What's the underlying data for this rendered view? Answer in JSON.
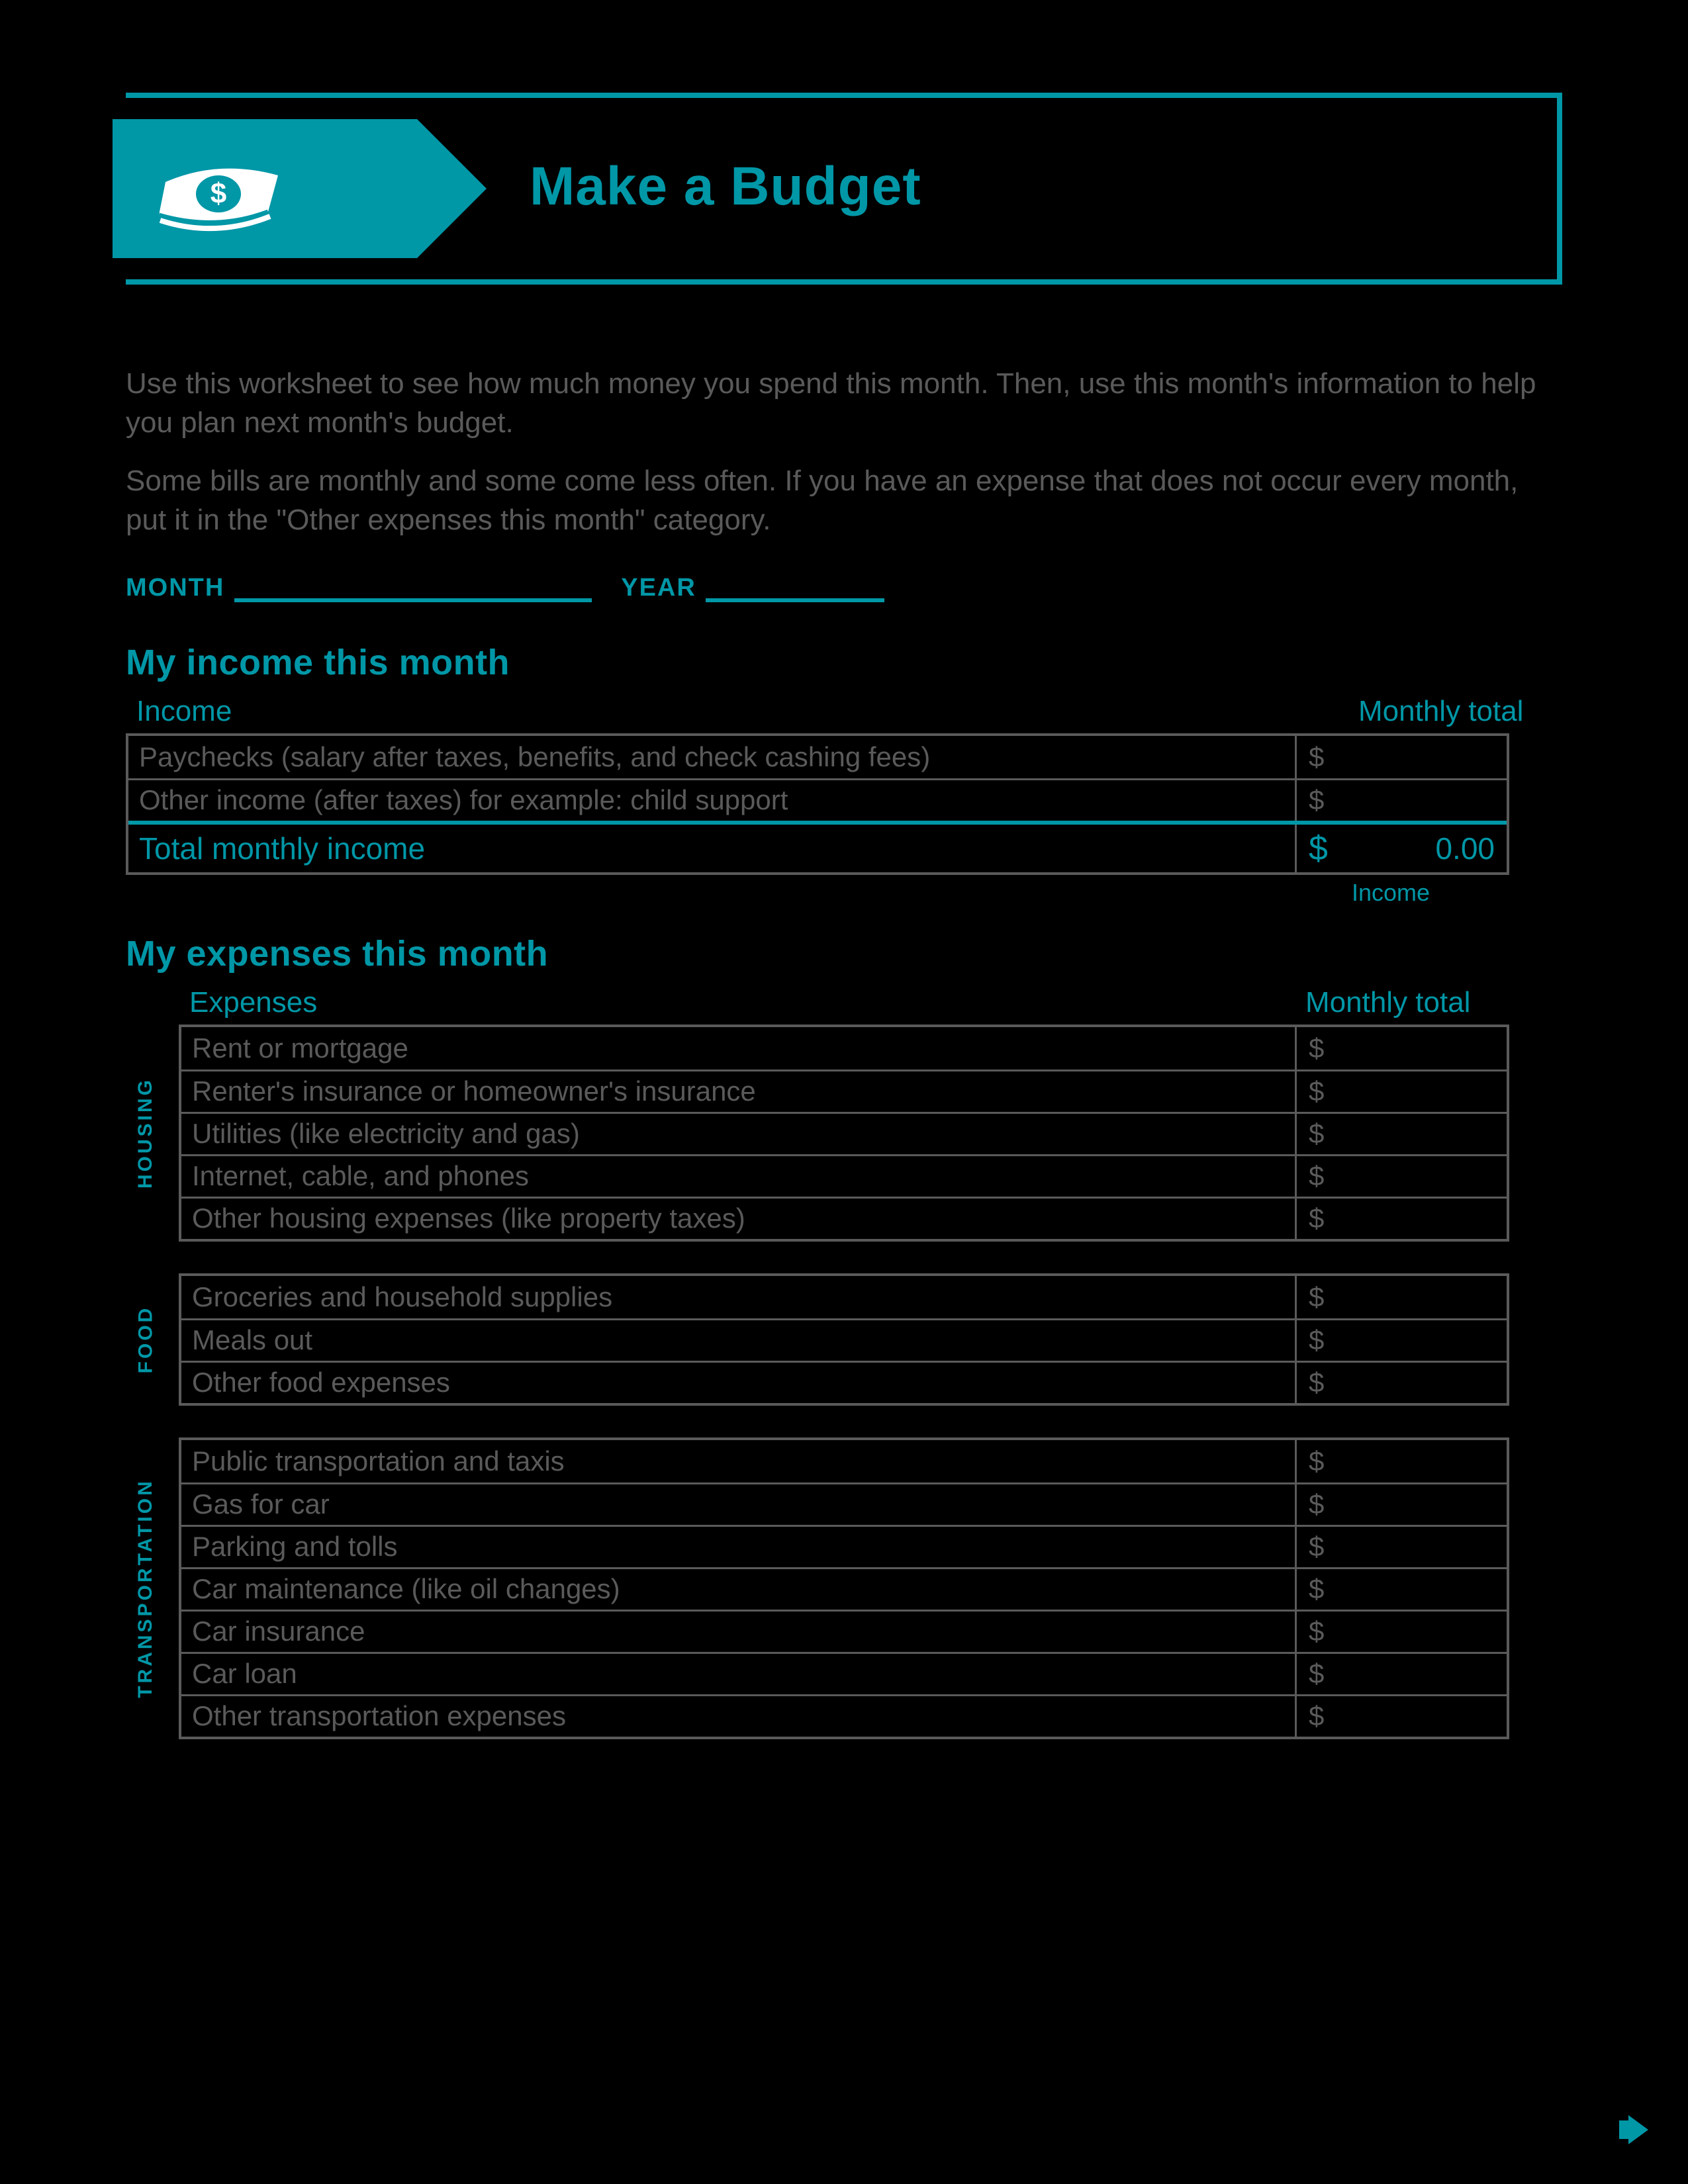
{
  "header": {
    "title": "Make a Budget"
  },
  "intro": {
    "p1": "Use this worksheet to see how much money you spend this month. Then, use this month's information to help you plan next month's budget.",
    "p2": "Some bills are monthly and some come less often. If you have an expense that does not occur every month, put it in the \"Other expenses this month\" category."
  },
  "date": {
    "month_label": "MONTH",
    "year_label": "YEAR",
    "month_value": "",
    "year_value": ""
  },
  "income": {
    "heading": "My income this month",
    "col_left": "Income",
    "col_right": "Monthly total",
    "rows": [
      {
        "desc": "Paychecks (salary after taxes, benefits, and check cashing fees)",
        "amount": ""
      },
      {
        "desc": "Other income (after taxes) for example: child support",
        "amount": ""
      }
    ],
    "total_label": "Total monthly income",
    "total_value": "0.00",
    "sublabel": "Income"
  },
  "expenses": {
    "heading": "My expenses this month",
    "col_left": "Expenses",
    "col_right": "Monthly total",
    "groups": [
      {
        "label": "HOUSING",
        "rows": [
          {
            "desc": "Rent or mortgage",
            "amount": ""
          },
          {
            "desc": "Renter's insurance or homeowner's insurance",
            "amount": ""
          },
          {
            "desc": "Utilities (like electricity and gas)",
            "amount": ""
          },
          {
            "desc": "Internet, cable, and phones",
            "amount": ""
          },
          {
            "desc": "Other housing expenses (like property taxes)",
            "amount": ""
          }
        ]
      },
      {
        "label": "FOOD",
        "rows": [
          {
            "desc": "Groceries and household supplies",
            "amount": ""
          },
          {
            "desc": "Meals out",
            "amount": ""
          },
          {
            "desc": "Other food expenses",
            "amount": ""
          }
        ]
      },
      {
        "label": "TRANSPORTATION",
        "rows": [
          {
            "desc": "Public transportation and taxis",
            "amount": ""
          },
          {
            "desc": "Gas for car",
            "amount": ""
          },
          {
            "desc": "Parking and tolls",
            "amount": ""
          },
          {
            "desc": "Car maintenance (like oil changes)",
            "amount": ""
          },
          {
            "desc": "Car insurance",
            "amount": ""
          },
          {
            "desc": "Car loan",
            "amount": ""
          },
          {
            "desc": "Other transportation expenses",
            "amount": ""
          }
        ]
      }
    ]
  },
  "currency_symbol": "$",
  "colors": {
    "accent": "#0097a7",
    "text": "#5a5a5a",
    "bg": "#000000"
  }
}
